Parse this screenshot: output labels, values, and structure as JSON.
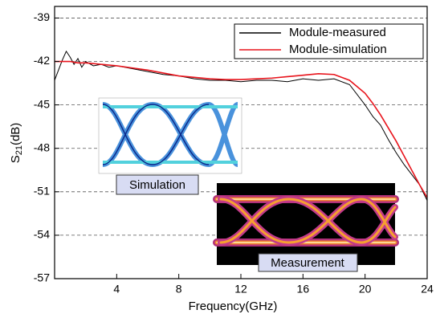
{
  "chart_data": {
    "type": "line",
    "x_label": "Frequency(GHz)",
    "y_label": {
      "main": "S",
      "subscript": "21",
      "unit": "(dB)"
    },
    "xlim": [
      0,
      24
    ],
    "ylim": [
      -57,
      -38.2
    ],
    "xticks": [
      4,
      8,
      12,
      16,
      20,
      24
    ],
    "yticks": [
      -39,
      -42,
      -45,
      -48,
      -51,
      -54,
      -57
    ],
    "grid": true,
    "legend": "upper right",
    "x": [
      0,
      0.25,
      0.5,
      0.75,
      1,
      1.25,
      1.5,
      1.75,
      2,
      2.5,
      3,
      3.5,
      4,
      5,
      6,
      7,
      8,
      9,
      10,
      11,
      12,
      13,
      14,
      15,
      16,
      17,
      18,
      19,
      20,
      20.5,
      21,
      21.5,
      22,
      22.5,
      23,
      23.5,
      24
    ],
    "series": [
      {
        "name": "Module-measured",
        "color": "#000000",
        "values": [
          -43.3,
          -42.6,
          -41.9,
          -41.3,
          -41.7,
          -42.2,
          -41.8,
          -42.4,
          -42.0,
          -42.3,
          -42.2,
          -42.4,
          -42.3,
          -42.5,
          -42.7,
          -42.9,
          -43.0,
          -43.2,
          -43.3,
          -43.3,
          -43.4,
          -43.3,
          -43.3,
          -43.4,
          -43.2,
          -43.3,
          -43.2,
          -43.6,
          -45.0,
          -45.8,
          -46.4,
          -47.4,
          -48.3,
          -49.1,
          -49.8,
          -50.5,
          -51.6
        ]
      },
      {
        "name": "Module-simulation",
        "color": "#e8141c",
        "values": [
          -42.0,
          -42.0,
          -42.0,
          -42.0,
          -42.0,
          -42.05,
          -42.1,
          -42.1,
          -42.1,
          -42.15,
          -42.2,
          -42.25,
          -42.3,
          -42.45,
          -42.6,
          -42.8,
          -43.0,
          -43.1,
          -43.2,
          -43.25,
          -43.25,
          -43.2,
          -43.15,
          -43.05,
          -42.95,
          -42.85,
          -42.9,
          -43.3,
          -44.2,
          -44.9,
          -45.7,
          -46.6,
          -47.5,
          -48.5,
          -49.5,
          -50.5,
          -51.4
        ]
      }
    ],
    "insets": [
      "Simulation",
      "Measurement"
    ]
  }
}
